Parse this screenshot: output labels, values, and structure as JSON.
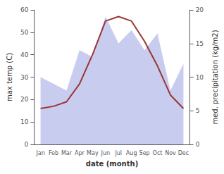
{
  "chart_data": {
    "type": "line",
    "x_label": "date (month)",
    "y_label": "max temp (C)",
    "y2_label": "med. precipitation (kg/m2)",
    "categories": [
      "Jan",
      "Feb",
      "Mar",
      "Apr",
      "May",
      "Jun",
      "Jul",
      "Aug",
      "Sep",
      "Oct",
      "Nov",
      "Dec"
    ],
    "series": [
      {
        "type": "area",
        "color": "#c8ccee",
        "axis": "y2",
        "values": [
          10,
          9,
          8,
          14,
          13,
          19,
          15,
          17,
          14,
          16.5,
          8,
          12
        ]
      },
      {
        "type": "line",
        "color": "#9b3535",
        "values": [
          16,
          17,
          19,
          27,
          40,
          55,
          57,
          55,
          46,
          35,
          22,
          16
        ]
      }
    ],
    "ylim": [
      0,
      60
    ],
    "yticks": [
      0,
      10,
      20,
      30,
      40,
      50,
      60
    ],
    "y2lim": [
      0,
      20
    ],
    "y2ticks": [
      0,
      5,
      10,
      15,
      20
    ],
    "grid": false
  }
}
